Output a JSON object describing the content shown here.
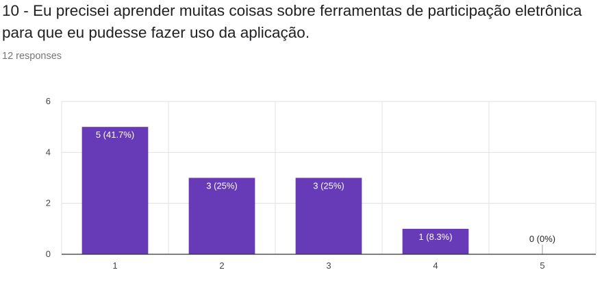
{
  "question": {
    "title": "10 - Eu precisei aprender muitas coisas sobre ferramentas de participação eletrônica para que eu pudesse fazer uso da aplicação.",
    "responses": "12 responses"
  },
  "colors": {
    "bar": "#673ab7",
    "grid": "#e0e0e0",
    "axis": "#333333"
  },
  "chart_data": {
    "type": "bar",
    "categories": [
      "1",
      "2",
      "3",
      "4",
      "5"
    ],
    "values": [
      5,
      3,
      3,
      1,
      0
    ],
    "data_labels": [
      "5 (41.7%)",
      "3 (25%)",
      "3 (25%)",
      "1 (8.3%)",
      "0 (0%)"
    ],
    "ylim": [
      0,
      6
    ],
    "yticks": [
      0,
      2,
      4,
      6
    ],
    "grid": true,
    "title": "",
    "xlabel": "",
    "ylabel": ""
  }
}
